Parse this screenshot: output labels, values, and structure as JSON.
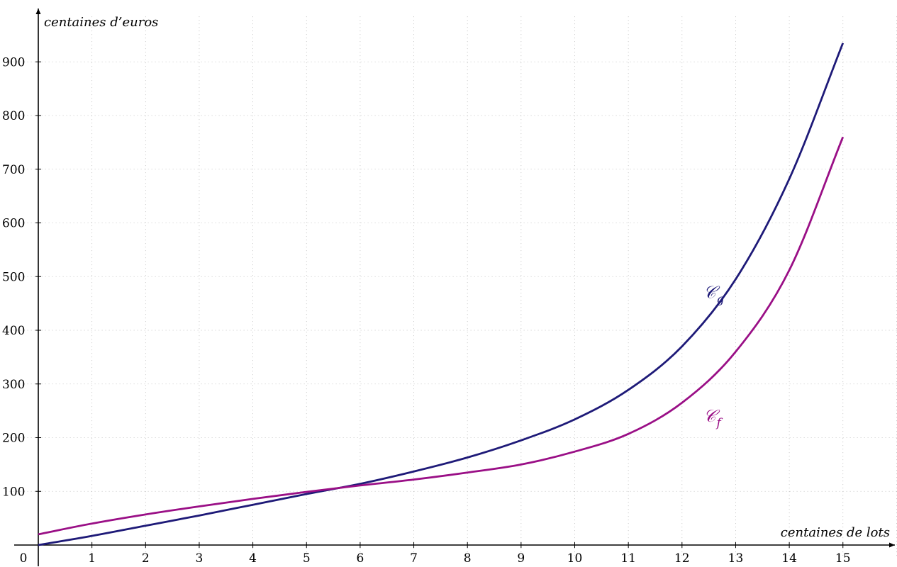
{
  "chart_data": {
    "type": "line",
    "xlabel": "centaines de lots",
    "ylabel": "centaines d’euros",
    "origin_label": "0",
    "xlim": [
      0,
      16
    ],
    "ylim": [
      -20,
      990
    ],
    "x_ticks": [
      1,
      2,
      3,
      4,
      5,
      6,
      7,
      8,
      9,
      10,
      11,
      12,
      13,
      14,
      15
    ],
    "y_ticks": [
      100,
      200,
      300,
      400,
      500,
      600,
      700,
      800,
      900
    ],
    "grid": true,
    "series": [
      {
        "name": "𝒞g",
        "color": "#1e1a78",
        "points": [
          [
            0,
            0
          ],
          [
            1,
            17
          ],
          [
            2,
            36
          ],
          [
            3,
            55
          ],
          [
            4,
            75
          ],
          [
            5,
            95
          ],
          [
            6,
            114
          ],
          [
            7,
            137
          ],
          [
            8,
            163
          ],
          [
            9,
            195
          ],
          [
            10,
            234
          ],
          [
            11,
            289
          ],
          [
            12,
            370
          ],
          [
            13,
            495
          ],
          [
            14,
            682
          ],
          [
            15,
            935
          ]
        ]
      },
      {
        "name": "𝒞f",
        "color": "#9a0f86",
        "points": [
          [
            0,
            20
          ],
          [
            1,
            40
          ],
          [
            2,
            57
          ],
          [
            3,
            72
          ],
          [
            4,
            86
          ],
          [
            5,
            99
          ],
          [
            6,
            111
          ],
          [
            7,
            122
          ],
          [
            8,
            135
          ],
          [
            9,
            150
          ],
          [
            10,
            174
          ],
          [
            11,
            207
          ],
          [
            12,
            265
          ],
          [
            13,
            360
          ],
          [
            14,
            512
          ],
          [
            15,
            760
          ]
        ]
      }
    ],
    "labels": [
      {
        "text": "𝒞",
        "sub": "g",
        "color": "#1e1a78",
        "x": 12.4,
        "y": 460
      },
      {
        "text": "𝒞",
        "sub": "f",
        "color": "#9a0f86",
        "x": 12.4,
        "y": 230
      }
    ]
  }
}
